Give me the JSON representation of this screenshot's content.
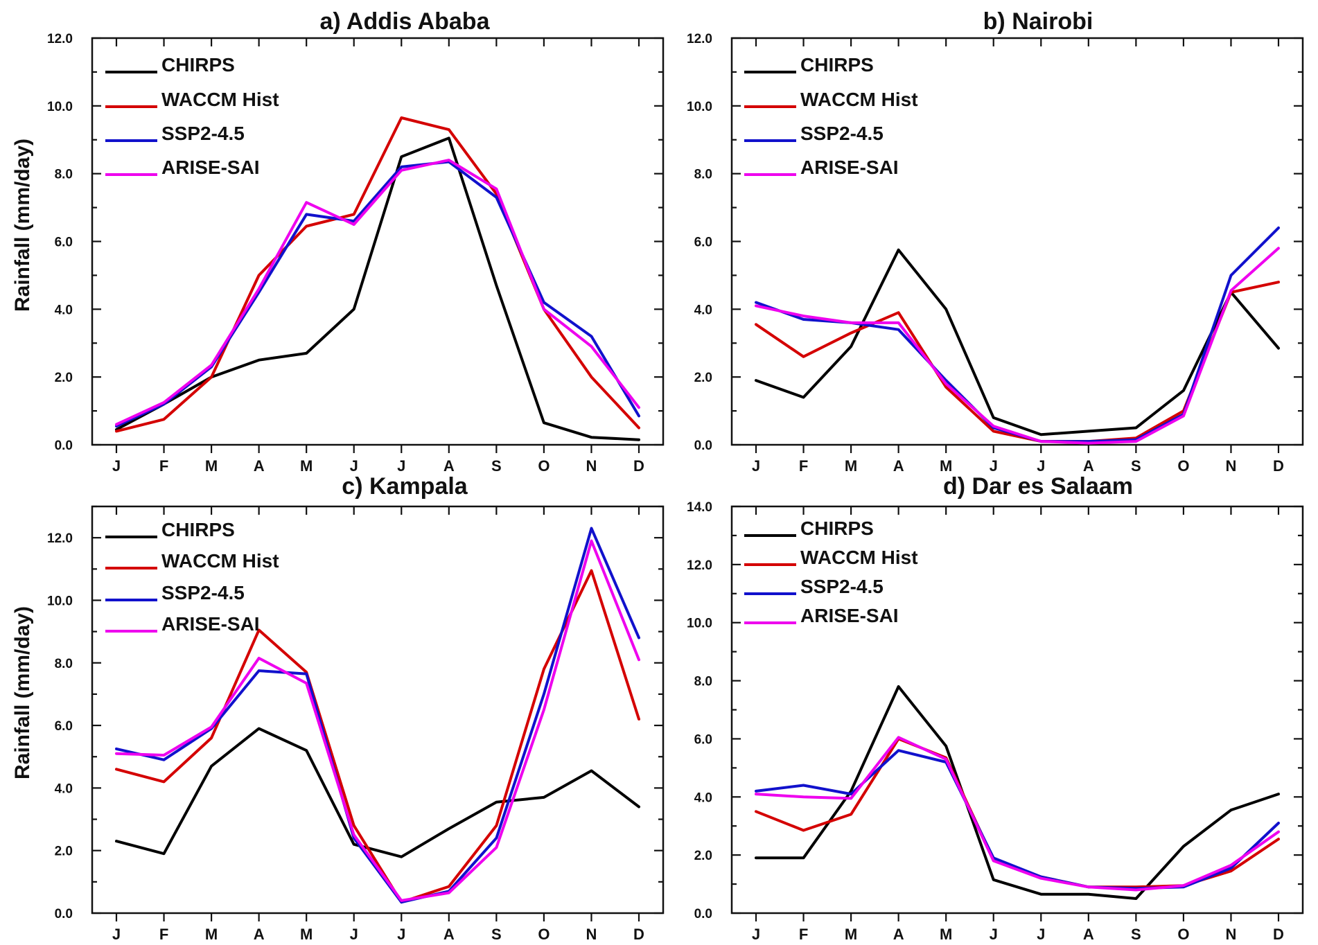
{
  "figure": {
    "ylabel": "Rainfall (mm/day)"
  },
  "chart_data": [
    {
      "type": "line",
      "title": "a) Addis Ababa",
      "xlabel": "",
      "ylabel": "Rainfall (mm/day)",
      "categories": [
        "J",
        "F",
        "M",
        "A",
        "M",
        "J",
        "J",
        "A",
        "S",
        "O",
        "N",
        "D"
      ],
      "ylim": [
        0,
        12
      ],
      "yticks": [
        0,
        2,
        4,
        6,
        8,
        10,
        12
      ],
      "ytick_labels": [
        "0.0",
        "2.0",
        "4.0",
        "6.0",
        "8.0",
        "10.0",
        "12.0"
      ],
      "series": [
        {
          "name": "CHIRPS",
          "color": "#000000",
          "values": [
            0.45,
            1.2,
            2.0,
            2.5,
            2.7,
            4.0,
            8.5,
            9.05,
            4.7,
            0.65,
            0.22,
            0.15
          ]
        },
        {
          "name": "WACCM Hist",
          "color": "#d40000",
          "values": [
            0.4,
            0.75,
            2.0,
            5.0,
            6.45,
            6.8,
            9.65,
            9.3,
            7.4,
            4.0,
            2.0,
            0.5
          ]
        },
        {
          "name": "SSP2-4.5",
          "color": "#1111cc",
          "values": [
            0.55,
            1.2,
            2.3,
            4.5,
            6.8,
            6.6,
            8.2,
            8.35,
            7.3,
            4.2,
            3.2,
            0.85
          ]
        },
        {
          "name": "ARISE-SAI",
          "color": "#ee00ee",
          "values": [
            0.6,
            1.25,
            2.35,
            4.6,
            7.15,
            6.5,
            8.1,
            8.4,
            7.55,
            4.0,
            2.9,
            1.1
          ]
        }
      ]
    },
    {
      "type": "line",
      "title": "b) Nairobi",
      "xlabel": "",
      "ylabel": "",
      "categories": [
        "J",
        "F",
        "M",
        "A",
        "M",
        "J",
        "J",
        "A",
        "S",
        "O",
        "N",
        "D"
      ],
      "ylim": [
        0,
        12
      ],
      "yticks": [
        0,
        2,
        4,
        6,
        8,
        10,
        12
      ],
      "ytick_labels": [
        "0.0",
        "2.0",
        "4.0",
        "6.0",
        "8.0",
        "10.0",
        "12.0"
      ],
      "series": [
        {
          "name": "CHIRPS",
          "color": "#000000",
          "values": [
            1.9,
            1.4,
            2.9,
            5.75,
            4.0,
            0.8,
            0.3,
            0.4,
            0.5,
            1.6,
            4.5,
            2.85
          ]
        },
        {
          "name": "WACCM Hist",
          "color": "#d40000",
          "values": [
            3.55,
            2.6,
            3.3,
            3.9,
            1.7,
            0.4,
            0.1,
            0.1,
            0.2,
            1.0,
            4.5,
            4.8
          ]
        },
        {
          "name": "SSP2-4.5",
          "color": "#1111cc",
          "values": [
            4.2,
            3.7,
            3.6,
            3.4,
            1.9,
            0.5,
            0.1,
            0.1,
            0.15,
            0.9,
            5.0,
            6.4
          ]
        },
        {
          "name": "ARISE-SAI",
          "color": "#ee00ee",
          "values": [
            4.1,
            3.8,
            3.6,
            3.6,
            1.8,
            0.55,
            0.1,
            0.05,
            0.1,
            0.85,
            4.55,
            5.8
          ]
        }
      ]
    },
    {
      "type": "line",
      "title": "c) Kampala",
      "xlabel": "",
      "ylabel": "Rainfall (mm/day)",
      "categories": [
        "J",
        "F",
        "M",
        "A",
        "M",
        "J",
        "J",
        "A",
        "S",
        "O",
        "N",
        "D"
      ],
      "ylim": [
        0,
        13
      ],
      "yticks": [
        0,
        2,
        4,
        6,
        8,
        10,
        12
      ],
      "ytick_labels": [
        "0.0",
        "2.0",
        "4.0",
        "6.0",
        "8.0",
        "10.0",
        "12.0"
      ],
      "series": [
        {
          "name": "CHIRPS",
          "color": "#000000",
          "values": [
            2.3,
            1.9,
            4.7,
            5.9,
            5.2,
            2.2,
            1.8,
            2.7,
            3.55,
            3.7,
            4.55,
            3.4
          ]
        },
        {
          "name": "WACCM Hist",
          "color": "#d40000",
          "values": [
            4.6,
            4.2,
            5.6,
            9.05,
            7.7,
            2.8,
            0.35,
            0.85,
            2.8,
            7.8,
            10.95,
            6.2
          ]
        },
        {
          "name": "SSP2-4.5",
          "color": "#1111cc",
          "values": [
            5.25,
            4.9,
            5.9,
            7.75,
            7.65,
            2.4,
            0.35,
            0.7,
            2.4,
            7.0,
            12.3,
            8.8
          ]
        },
        {
          "name": "ARISE-SAI",
          "color": "#ee00ee",
          "values": [
            5.1,
            5.05,
            5.95,
            8.15,
            7.35,
            2.5,
            0.4,
            0.65,
            2.1,
            6.5,
            11.9,
            8.1
          ]
        }
      ]
    },
    {
      "type": "line",
      "title": "d) Dar es Salaam",
      "xlabel": "",
      "ylabel": "",
      "categories": [
        "J",
        "F",
        "M",
        "A",
        "M",
        "J",
        "J",
        "A",
        "S",
        "O",
        "N",
        "D"
      ],
      "ylim": [
        0,
        14
      ],
      "yticks": [
        0,
        2,
        4,
        6,
        8,
        10,
        12,
        14
      ],
      "ytick_labels": [
        "0.0",
        "2.0",
        "4.0",
        "6.0",
        "8.0",
        "10.0",
        "12.0",
        "14.0"
      ],
      "series": [
        {
          "name": "CHIRPS",
          "color": "#000000",
          "values": [
            1.9,
            1.9,
            4.2,
            7.8,
            5.75,
            1.15,
            0.65,
            0.65,
            0.5,
            2.3,
            3.55,
            4.1
          ]
        },
        {
          "name": "WACCM Hist",
          "color": "#d40000",
          "values": [
            3.5,
            2.85,
            3.4,
            6.0,
            5.35,
            1.85,
            1.25,
            0.9,
            0.9,
            0.95,
            1.45,
            2.55
          ]
        },
        {
          "name": "SSP2-4.5",
          "color": "#1111cc",
          "values": [
            4.2,
            4.4,
            4.1,
            5.6,
            5.2,
            1.9,
            1.25,
            0.9,
            0.85,
            0.9,
            1.55,
            3.1
          ]
        },
        {
          "name": "ARISE-SAI",
          "color": "#ee00ee",
          "values": [
            4.1,
            4.0,
            3.95,
            6.05,
            5.3,
            1.8,
            1.2,
            0.9,
            0.8,
            0.95,
            1.65,
            2.8
          ]
        }
      ]
    }
  ]
}
